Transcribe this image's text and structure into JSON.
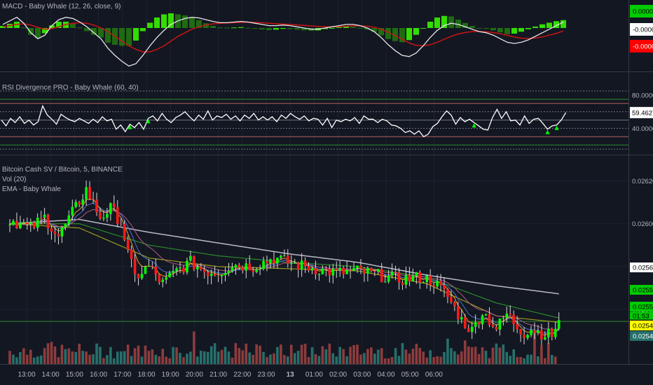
{
  "colors": {
    "background": "#131722",
    "grid": "#1e2230",
    "separator": "#363a45",
    "axis_text": "#b2b5be",
    "candle_up": "#00ff00",
    "candle_down": "#ff1a1a",
    "volume_up": "#26706a",
    "volume_down": "#8e3c3c",
    "macd_line": "#e6e6e6",
    "signal_line": "#cc1414",
    "hist_up": "#33dd00",
    "hist_down": "#1f6b12",
    "rsi_line": "#ffffff",
    "rsi_level": "#b06060",
    "ema_slow": "#b8b8c4",
    "ema_mid": "#2a8a2a",
    "ema_fast": "#9a9a20",
    "support": "#2e8b2e"
  },
  "chart_data": [
    {
      "pane": "macd",
      "type": "line",
      "legend": "MACD - Baby Whale (12, 26, close, 9)",
      "price_labels": [
        {
          "value": "0.0000",
          "bg": "#00cc00",
          "fg": "#000000"
        },
        {
          "value": "-0.0000",
          "bg": "#ffffff",
          "fg": "#000000"
        },
        {
          "value": "-0.0000",
          "bg": "#ff0000",
          "fg": "#ffffff"
        }
      ],
      "macd": [
        0.3,
        0.6,
        0.9,
        0.4,
        -0.4,
        -0.9,
        -0.6,
        0.2,
        0.7,
        0.9,
        0.8,
        0.5,
        0.1,
        -0.4,
        -0.9,
        -1.7,
        -2.3,
        -2.8,
        -3.2,
        -3.0,
        -2.3,
        -1.5,
        -0.8,
        -0.2,
        0.3,
        0.6,
        0.8,
        0.9,
        0.85,
        0.7,
        0.55,
        0.45,
        0.45,
        0.5,
        0.55,
        0.5,
        0.4,
        0.3,
        0.2,
        0.2,
        0.25,
        0.2,
        0.1,
        0.0,
        -0.1,
        -0.1,
        0.0,
        0.1,
        0.2,
        0.3,
        0.3,
        0.2,
        0.0,
        -0.3,
        -0.8,
        -1.4,
        -1.9,
        -2.3,
        -2.4,
        -2.1,
        -1.5,
        -0.8,
        -0.2,
        0.2,
        0.4,
        0.3,
        0.1,
        -0.1,
        -0.3,
        -0.4,
        -0.6,
        -0.9,
        -1.2,
        -1.3,
        -1.2,
        -1.0,
        -0.7,
        -0.4,
        -0.1,
        0.2,
        0.5
      ],
      "signal": [
        0.1,
        0.2,
        0.3,
        0.35,
        0.25,
        0.05,
        -0.1,
        -0.05,
        0.1,
        0.3,
        0.4,
        0.45,
        0.4,
        0.25,
        0.0,
        -0.3,
        -0.7,
        -1.1,
        -1.5,
        -1.8,
        -2.0,
        -2.0,
        -1.8,
        -1.5,
        -1.1,
        -0.7,
        -0.4,
        -0.1,
        0.1,
        0.25,
        0.35,
        0.4,
        0.42,
        0.45,
        0.47,
        0.48,
        0.47,
        0.44,
        0.4,
        0.36,
        0.33,
        0.3,
        0.26,
        0.22,
        0.17,
        0.13,
        0.1,
        0.1,
        0.12,
        0.15,
        0.18,
        0.19,
        0.15,
        0.07,
        -0.1,
        -0.35,
        -0.65,
        -0.95,
        -1.25,
        -1.45,
        -1.5,
        -1.4,
        -1.2,
        -0.95,
        -0.7,
        -0.5,
        -0.38,
        -0.3,
        -0.3,
        -0.32,
        -0.38,
        -0.48,
        -0.62,
        -0.76,
        -0.85,
        -0.88,
        -0.84,
        -0.75,
        -0.6,
        -0.45,
        -0.25
      ]
    },
    {
      "pane": "rsi",
      "type": "line",
      "legend": "RSI Divergence PRO - Baby Whale (60, 40)",
      "ylim": [
        10,
        90
      ],
      "ticks": [
        80,
        40
      ],
      "tick_labels": [
        "80.0000",
        "40.0000"
      ],
      "levels": [
        85,
        75,
        70,
        60,
        50,
        40,
        30,
        20,
        15
      ],
      "last_value_label": "59.4627",
      "values": [
        50,
        43,
        52,
        47,
        54,
        46,
        50,
        44,
        48,
        67,
        56,
        51,
        45,
        57,
        53,
        50,
        48,
        52,
        49,
        46,
        51,
        47,
        54,
        49,
        51,
        39,
        44,
        36,
        45,
        41,
        47,
        39,
        52,
        55,
        49,
        58,
        51,
        47,
        53,
        56,
        60,
        54,
        49,
        56,
        51,
        61,
        50,
        55,
        53,
        57,
        51,
        55,
        49,
        56,
        52,
        58,
        50,
        54,
        50,
        54,
        48,
        56,
        52,
        58,
        54,
        51,
        55,
        49,
        52,
        51,
        44,
        52,
        41,
        50,
        48,
        51,
        49,
        53,
        46,
        55,
        51,
        51,
        47,
        51,
        49,
        44,
        43,
        40,
        35,
        37,
        33,
        37,
        30,
        33,
        42,
        46,
        54,
        61,
        56,
        45,
        53,
        48,
        51,
        47,
        43,
        39,
        38,
        53,
        63,
        52,
        60,
        49,
        50,
        44,
        55,
        46,
        51,
        52,
        46,
        39,
        43,
        44,
        50,
        59
      ],
      "divergence_markers": [
        28,
        32,
        103,
        119,
        121
      ]
    },
    {
      "pane": "price",
      "type": "candlestick",
      "legend": [
        "Bitcoin Cash SV / Bitcoin, 5, BINANCE",
        "Vol (20)",
        "EMA - Baby Whale"
      ],
      "ylim": [
        0.025378,
        0.026286
      ],
      "ticks": [
        0.0262,
        0.026,
        0.0258,
        0.0256
      ],
      "tick_labels": [
        "0.026200",
        "0.026000",
        "0.025800",
        "0.025600"
      ],
      "price_labels": [
        {
          "value": "0.025673",
          "bg": "#ffffff",
          "fg": "#000000"
        },
        {
          "value": "0.025552",
          "bg": "#00cc00",
          "fg": "#000000"
        },
        {
          "value": "0.025528",
          "bg": "#00cc00",
          "fg": "#000000"
        },
        {
          "value": "01:53",
          "bg": "#00cc00",
          "fg": "#000000"
        },
        {
          "value": "0.025481",
          "bg": "#ffff00",
          "fg": "#000000"
        },
        {
          "value": "0.025420",
          "bg": "#26706a",
          "fg": "#ffffff"
        }
      ],
      "support_level": 0.025544,
      "x_labels": [
        "13:00",
        "14:00",
        "15:00",
        "16:00",
        "17:00",
        "18:00",
        "19:00",
        "20:00",
        "21:00",
        "22:00",
        "23:00",
        "13",
        "01:00",
        "02:00",
        "03:00",
        "04:00",
        "05:00",
        "06:00"
      ],
      "x_label_bold": [
        false,
        false,
        false,
        false,
        false,
        false,
        false,
        false,
        false,
        false,
        false,
        true,
        false,
        false,
        false,
        false,
        false,
        false
      ],
      "anchors": [
        [
          0,
          0.02602
        ],
        [
          6,
          0.02598
        ],
        [
          10,
          0.02603
        ],
        [
          14,
          0.02594
        ],
        [
          18,
          0.02605
        ],
        [
          22,
          0.02616
        ],
        [
          26,
          0.02603
        ],
        [
          29,
          0.02607
        ],
        [
          32,
          0.02601
        ],
        [
          34,
          0.02586
        ],
        [
          36,
          0.02575
        ],
        [
          40,
          0.0258
        ],
        [
          44,
          0.02572
        ],
        [
          48,
          0.02578
        ],
        [
          52,
          0.02582
        ],
        [
          56,
          0.02578
        ],
        [
          60,
          0.02577
        ],
        [
          64,
          0.02581
        ],
        [
          70,
          0.0258
        ],
        [
          76,
          0.02584
        ],
        [
          82,
          0.02581
        ],
        [
          88,
          0.02579
        ],
        [
          94,
          0.02577
        ],
        [
          100,
          0.02578
        ],
        [
          106,
          0.02576
        ],
        [
          112,
          0.02574
        ],
        [
          118,
          0.02575
        ],
        [
          122,
          0.02573
        ],
        [
          126,
          0.02566
        ],
        [
          130,
          0.02555
        ],
        [
          133,
          0.0255
        ],
        [
          136,
          0.02559
        ],
        [
          140,
          0.02551
        ],
        [
          143,
          0.02558
        ],
        [
          146,
          0.02552
        ],
        [
          148,
          0.02549
        ],
        [
          150,
          0.02551
        ],
        [
          153,
          0.02549
        ],
        [
          156,
          0.02548
        ],
        [
          158,
          0.02555
        ]
      ],
      "ema_slow": [
        [
          0,
          0.026
        ],
        [
          20,
          0.02602
        ],
        [
          40,
          0.02596
        ],
        [
          60,
          0.02591
        ],
        [
          80,
          0.02586
        ],
        [
          100,
          0.02582
        ],
        [
          120,
          0.02576
        ],
        [
          140,
          0.02571
        ],
        [
          158,
          0.025673
        ]
      ],
      "ema_mid": [
        [
          0,
          0.026
        ],
        [
          20,
          0.026
        ],
        [
          40,
          0.0259
        ],
        [
          60,
          0.02585
        ],
        [
          80,
          0.02582
        ],
        [
          100,
          0.0258
        ],
        [
          120,
          0.02575
        ],
        [
          140,
          0.02563
        ],
        [
          158,
          0.02556
        ]
      ],
      "ema_fast": [
        [
          0,
          0.026
        ],
        [
          20,
          0.02598
        ],
        [
          40,
          0.02584
        ],
        [
          60,
          0.0258
        ],
        [
          80,
          0.02579
        ],
        [
          100,
          0.02578
        ],
        [
          120,
          0.02572
        ],
        [
          140,
          0.02557
        ],
        [
          158,
          0.02554
        ]
      ]
    }
  ]
}
